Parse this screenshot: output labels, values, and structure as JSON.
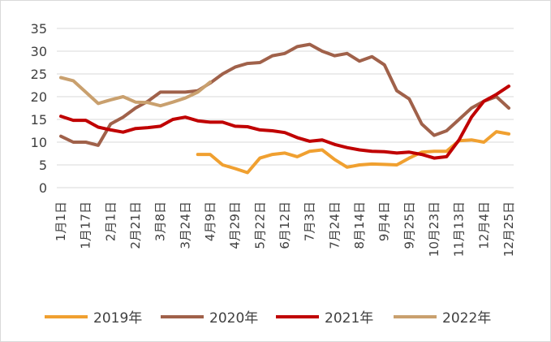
{
  "chart_data": {
    "type": "line",
    "categories": [
      "1月1日",
      null,
      "1月17日",
      null,
      "2月1日",
      null,
      "2月21日",
      null,
      "3月8日",
      null,
      "3月24日",
      null,
      "4月9日",
      null,
      "4月29日",
      null,
      "5月22日",
      null,
      "6月12日",
      null,
      "7月3日",
      null,
      "7月24日",
      null,
      "8月14日",
      null,
      "9月4日",
      null,
      "9月25日",
      null,
      "10月23日",
      null,
      "11月13日",
      null,
      "12月4日",
      null,
      "12月25日"
    ],
    "series": [
      {
        "name": "2019年",
        "color": "#f0a030",
        "values": [
          null,
          null,
          null,
          null,
          null,
          null,
          null,
          null,
          null,
          null,
          null,
          7.3,
          7.3,
          5,
          4.2,
          3.3,
          6.5,
          7.3,
          7.6,
          6.8,
          8,
          8.3,
          6.2,
          4.5,
          5,
          5.2,
          5.1,
          5,
          6.5,
          7.8,
          8,
          8,
          10.3,
          10.5,
          10,
          12.3,
          11.8
        ]
      },
      {
        "name": "2020年",
        "color": "#a0614a",
        "values": [
          11.3,
          10,
          10,
          9.3,
          14,
          15.5,
          17.5,
          19,
          21,
          21,
          21,
          21.3,
          23,
          25,
          26.5,
          27.3,
          27.5,
          29,
          29.5,
          31,
          31.5,
          30,
          29,
          29.5,
          27.8,
          28.8,
          27,
          21.3,
          19.5,
          14,
          11.5,
          12.5,
          15,
          17.5,
          19,
          20,
          17.5
        ]
      },
      {
        "name": "2021年",
        "color": "#c00000",
        "values": [
          15.7,
          14.8,
          14.8,
          13.3,
          12.7,
          12.2,
          13,
          13.2,
          13.5,
          15,
          15.5,
          14.7,
          14.4,
          14.4,
          13.5,
          13.4,
          12.7,
          12.5,
          12.1,
          11,
          10.2,
          10.5,
          9.5,
          8.8,
          8.3,
          8,
          7.9,
          7.6,
          7.8,
          7.3,
          6.5,
          6.8,
          10.5,
          15.5,
          19,
          20.5,
          22.3
        ]
      },
      {
        "name": "2022年",
        "color": "#c9a06e",
        "values": [
          24.2,
          23.5,
          21,
          18.5,
          19.3,
          20,
          18.8,
          18.7,
          18,
          18.8,
          19.7,
          21,
          23.2,
          null,
          null,
          null,
          null,
          null,
          null,
          null,
          null,
          null,
          null,
          null,
          null,
          null,
          null,
          null,
          null,
          null,
          null,
          null,
          null,
          null,
          null,
          null,
          null
        ]
      }
    ],
    "ylim": [
      0,
      35
    ],
    "yticks": [
      0,
      5,
      10,
      15,
      20,
      25,
      30,
      35
    ],
    "grid": true
  }
}
